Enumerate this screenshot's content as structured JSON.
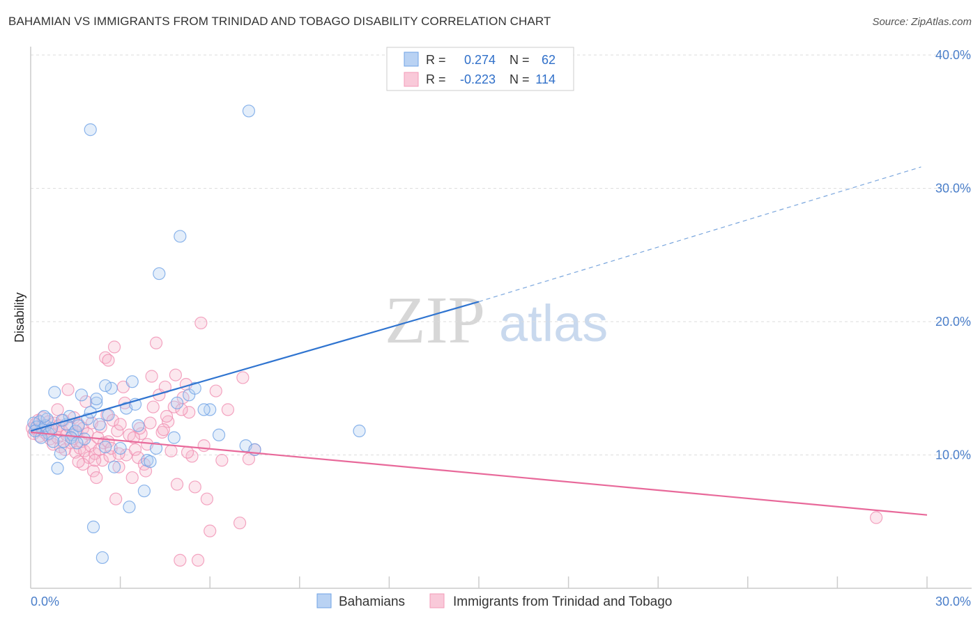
{
  "title": "BAHAMIAN VS IMMIGRANTS FROM TRINIDAD AND TOBAGO DISABILITY CORRELATION CHART",
  "source": "Source: ZipAtlas.com",
  "watermark": {
    "zip": "ZIP",
    "atlas": "atlas"
  },
  "colors": {
    "blue": "#6fa3e6",
    "blue_line": "#2f74d0",
    "pink": "#f39ab8",
    "pink_line": "#e8699a",
    "tick": "#4a7ec9"
  },
  "chart_data": {
    "type": "scatter",
    "title": "BAHAMIAN VS IMMIGRANTS FROM TRINIDAD AND TOBAGO DISABILITY CORRELATION CHART",
    "xlabel": "",
    "ylabel": "Disability",
    "xlim": [
      0,
      30
    ],
    "ylim": [
      0,
      41.5
    ],
    "x_tick_labels": [
      "0.0%",
      "30.0%"
    ],
    "y_ticks": [
      10,
      20,
      30,
      40
    ],
    "y_tick_labels": [
      "10.0%",
      "20.0%",
      "30.0%",
      "40.0%"
    ],
    "legend": [
      {
        "r_label": "R =",
        "r": "0.274",
        "n_label": "N =",
        "n": "62"
      },
      {
        "r_label": "R =",
        "r": "-0.223",
        "n_label": "N =",
        "n": "114"
      }
    ],
    "series": [
      {
        "name": "Bahamians",
        "color": "#6fa3e6",
        "trend": {
          "x0": 0,
          "y0": 11.8,
          "x1": 15,
          "y1": 21.5,
          "dash_x1": 29.8,
          "dash_y1": 31.6
        },
        "points": [
          [
            0.1,
            12.4
          ],
          [
            0.2,
            12.1
          ],
          [
            0.3,
            12.5
          ],
          [
            0.4,
            11.9
          ],
          [
            0.5,
            12.2
          ],
          [
            0.6,
            11.6
          ],
          [
            0.7,
            12.0
          ],
          [
            0.8,
            14.7
          ],
          [
            0.9,
            9.0
          ],
          [
            1.0,
            10.1
          ],
          [
            1.1,
            11.0
          ],
          [
            1.2,
            12.3
          ],
          [
            1.3,
            12.9
          ],
          [
            1.4,
            11.5
          ],
          [
            1.5,
            11.8
          ],
          [
            1.6,
            12.2
          ],
          [
            1.7,
            14.5
          ],
          [
            1.8,
            11.2
          ],
          [
            1.9,
            12.7
          ],
          [
            2.0,
            13.2
          ],
          [
            2.1,
            4.6
          ],
          [
            2.2,
            13.9
          ],
          [
            2.3,
            12.3
          ],
          [
            2.4,
            2.3
          ],
          [
            2.5,
            10.6
          ],
          [
            2.0,
            34.4
          ],
          [
            2.2,
            14.2
          ],
          [
            2.7,
            15.0
          ],
          [
            2.8,
            9.1
          ],
          [
            3.0,
            10.5
          ],
          [
            3.2,
            13.5
          ],
          [
            3.3,
            6.1
          ],
          [
            3.5,
            13.8
          ],
          [
            3.6,
            12.2
          ],
          [
            3.8,
            7.3
          ],
          [
            3.9,
            9.6
          ],
          [
            4.2,
            10.5
          ],
          [
            2.5,
            15.2
          ],
          [
            3.4,
            15.5
          ],
          [
            4.8,
            11.3
          ],
          [
            4.9,
            13.9
          ],
          [
            4.0,
            9.5
          ],
          [
            4.3,
            23.6
          ],
          [
            5.3,
            14.5
          ],
          [
            5.5,
            15.0
          ],
          [
            6.0,
            13.4
          ],
          [
            6.3,
            11.5
          ],
          [
            5.8,
            13.4
          ],
          [
            7.3,
            35.8
          ],
          [
            7.2,
            10.7
          ],
          [
            7.5,
            10.4
          ],
          [
            11.0,
            11.8
          ],
          [
            5.0,
            26.4
          ],
          [
            0.35,
            11.3
          ],
          [
            0.55,
            12.7
          ],
          [
            0.75,
            11.0
          ],
          [
            1.05,
            12.6
          ],
          [
            1.35,
            11.3
          ],
          [
            0.15,
            11.8
          ],
          [
            0.45,
            12.9
          ],
          [
            1.55,
            10.9
          ],
          [
            2.6,
            13.0
          ]
        ]
      },
      {
        "name": "Immigrants from Trinidad and Tobago",
        "color": "#f39ab8",
        "trend": {
          "x0": 0,
          "y0": 11.7,
          "x1": 30,
          "y1": 5.5
        },
        "points": [
          [
            0.05,
            12.0
          ],
          [
            0.1,
            11.6
          ],
          [
            0.15,
            12.3
          ],
          [
            0.2,
            11.9
          ],
          [
            0.25,
            12.6
          ],
          [
            0.3,
            11.4
          ],
          [
            0.35,
            12.1
          ],
          [
            0.4,
            12.8
          ],
          [
            0.45,
            11.7
          ],
          [
            0.5,
            12.2
          ],
          [
            0.55,
            11.5
          ],
          [
            0.6,
            12.5
          ],
          [
            0.65,
            11.2
          ],
          [
            0.7,
            12.0
          ],
          [
            0.75,
            10.8
          ],
          [
            0.8,
            12.4
          ],
          [
            0.85,
            11.9
          ],
          [
            0.9,
            11.3
          ],
          [
            0.95,
            12.2
          ],
          [
            1.0,
            10.6
          ],
          [
            1.05,
            11.8
          ],
          [
            1.1,
            12.6
          ],
          [
            1.15,
            10.4
          ],
          [
            1.2,
            11.5
          ],
          [
            1.25,
            14.9
          ],
          [
            1.3,
            12.1
          ],
          [
            1.35,
            10.9
          ],
          [
            1.4,
            11.2
          ],
          [
            1.45,
            12.8
          ],
          [
            1.5,
            10.2
          ],
          [
            1.55,
            11.7
          ],
          [
            1.6,
            12.3
          ],
          [
            1.65,
            10.5
          ],
          [
            1.7,
            11.0
          ],
          [
            1.75,
            12.0
          ],
          [
            1.8,
            10.3
          ],
          [
            1.85,
            14.0
          ],
          [
            1.9,
            11.6
          ],
          [
            1.95,
            9.8
          ],
          [
            2.0,
            10.7
          ],
          [
            2.05,
            12.4
          ],
          [
            2.1,
            8.8
          ],
          [
            2.15,
            10.1
          ],
          [
            2.2,
            8.3
          ],
          [
            2.25,
            11.3
          ],
          [
            2.3,
            10.4
          ],
          [
            2.35,
            12.1
          ],
          [
            2.4,
            9.6
          ],
          [
            2.45,
            10.9
          ],
          [
            2.5,
            17.3
          ],
          [
            2.55,
            13.0
          ],
          [
            2.6,
            11.0
          ],
          [
            2.65,
            9.9
          ],
          [
            2.7,
            10.5
          ],
          [
            2.75,
            12.6
          ],
          [
            2.8,
            18.1
          ],
          [
            2.85,
            6.7
          ],
          [
            2.9,
            11.8
          ],
          [
            2.95,
            9.1
          ],
          [
            3.0,
            12.3
          ],
          [
            3.1,
            15.1
          ],
          [
            3.2,
            10.0
          ],
          [
            3.3,
            11.5
          ],
          [
            3.4,
            8.3
          ],
          [
            3.5,
            10.4
          ],
          [
            3.6,
            9.8
          ],
          [
            3.7,
            11.6
          ],
          [
            3.8,
            9.3
          ],
          [
            3.9,
            10.8
          ],
          [
            4.0,
            12.4
          ],
          [
            4.1,
            13.6
          ],
          [
            4.2,
            18.4
          ],
          [
            4.3,
            14.5
          ],
          [
            4.4,
            11.7
          ],
          [
            4.5,
            15.1
          ],
          [
            4.6,
            12.5
          ],
          [
            4.7,
            10.3
          ],
          [
            4.8,
            13.6
          ],
          [
            4.9,
            7.8
          ],
          [
            5.0,
            2.1
          ],
          [
            5.1,
            14.3
          ],
          [
            5.2,
            15.3
          ],
          [
            5.3,
            13.2
          ],
          [
            5.4,
            9.9
          ],
          [
            5.5,
            7.6
          ],
          [
            5.6,
            2.1
          ],
          [
            5.7,
            19.9
          ],
          [
            5.8,
            10.7
          ],
          [
            5.9,
            6.7
          ],
          [
            6.0,
            4.3
          ],
          [
            6.2,
            14.8
          ],
          [
            6.4,
            9.6
          ],
          [
            6.6,
            13.4
          ],
          [
            7.0,
            4.9
          ],
          [
            7.1,
            15.8
          ],
          [
            7.3,
            9.7
          ],
          [
            7.5,
            10.4
          ],
          [
            4.05,
            15.9
          ],
          [
            3.65,
            12.0
          ],
          [
            2.95,
            10.1
          ],
          [
            3.15,
            13.9
          ],
          [
            4.55,
            12.9
          ],
          [
            5.25,
            10.2
          ],
          [
            1.75,
            9.3
          ],
          [
            2.15,
            9.6
          ],
          [
            3.85,
            8.8
          ],
          [
            4.45,
            11.9
          ],
          [
            28.3,
            5.3
          ],
          [
            5.05,
            13.4
          ],
          [
            0.9,
            13.4
          ],
          [
            1.6,
            9.5
          ],
          [
            2.6,
            17.1
          ],
          [
            4.85,
            16.0
          ],
          [
            3.45,
            11.3
          ]
        ]
      }
    ]
  },
  "bottom_legend": [
    {
      "label": "Bahamians"
    },
    {
      "label": "Immigrants from Trinidad and Tobago"
    }
  ]
}
